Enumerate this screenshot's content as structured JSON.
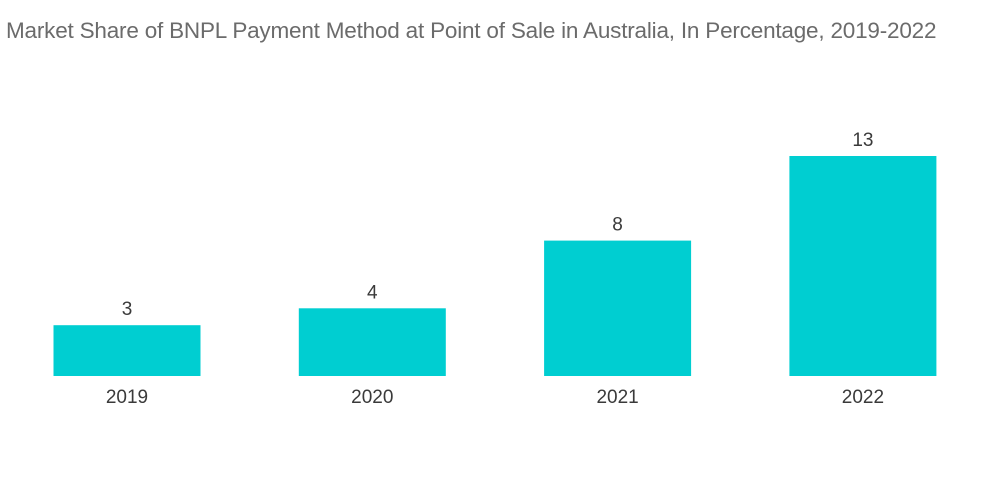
{
  "chart_data": {
    "type": "bar",
    "title": "Market Share of BNPL Payment Method at Point of Sale in Australia, In Percentage, 2019-2022",
    "categories": [
      "2019",
      "2020",
      "2021",
      "2022"
    ],
    "values": [
      3,
      4,
      8,
      13
    ],
    "xlabel": "",
    "ylabel": "",
    "ylim": [
      0,
      13
    ],
    "grid": false,
    "legend": "none",
    "data_labels": true,
    "bar_color": "#00CED1"
  }
}
